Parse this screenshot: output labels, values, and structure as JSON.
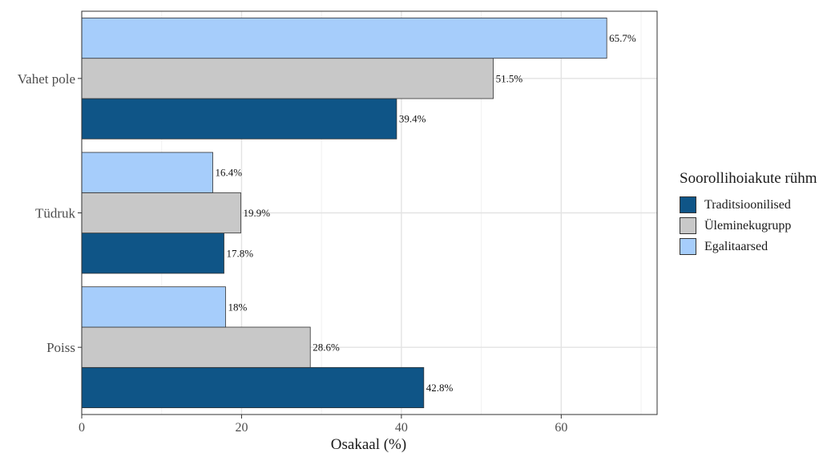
{
  "chart_data": {
    "type": "bar",
    "orientation": "horizontal",
    "categories": [
      "Vahet pole",
      "Tüdruk",
      "Poiss"
    ],
    "series": [
      {
        "name": "Traditsioonilised",
        "color": "#0f5587",
        "values": [
          39.4,
          17.8,
          42.8
        ],
        "labels": [
          "39.4%",
          "17.8%",
          "42.8%"
        ]
      },
      {
        "name": "Üleminekugrupp",
        "color": "#c8c8c8",
        "values": [
          51.5,
          19.9,
          28.6
        ],
        "labels": [
          "51.5%",
          "19.9%",
          "28.6%"
        ]
      },
      {
        "name": "Egalitaarsed",
        "color": "#a6cdfb",
        "values": [
          65.7,
          16.4,
          18.0
        ],
        "labels": [
          "65.7%",
          "16.4%",
          "18%"
        ]
      }
    ],
    "xlabel": "Osakaal (%)",
    "ylabel": "",
    "xlim": [
      0,
      72
    ],
    "xticks": [
      0,
      20,
      40,
      60
    ],
    "grid": true,
    "legend_position": "right",
    "legend_title": "Soorollihoiakute rühm"
  }
}
